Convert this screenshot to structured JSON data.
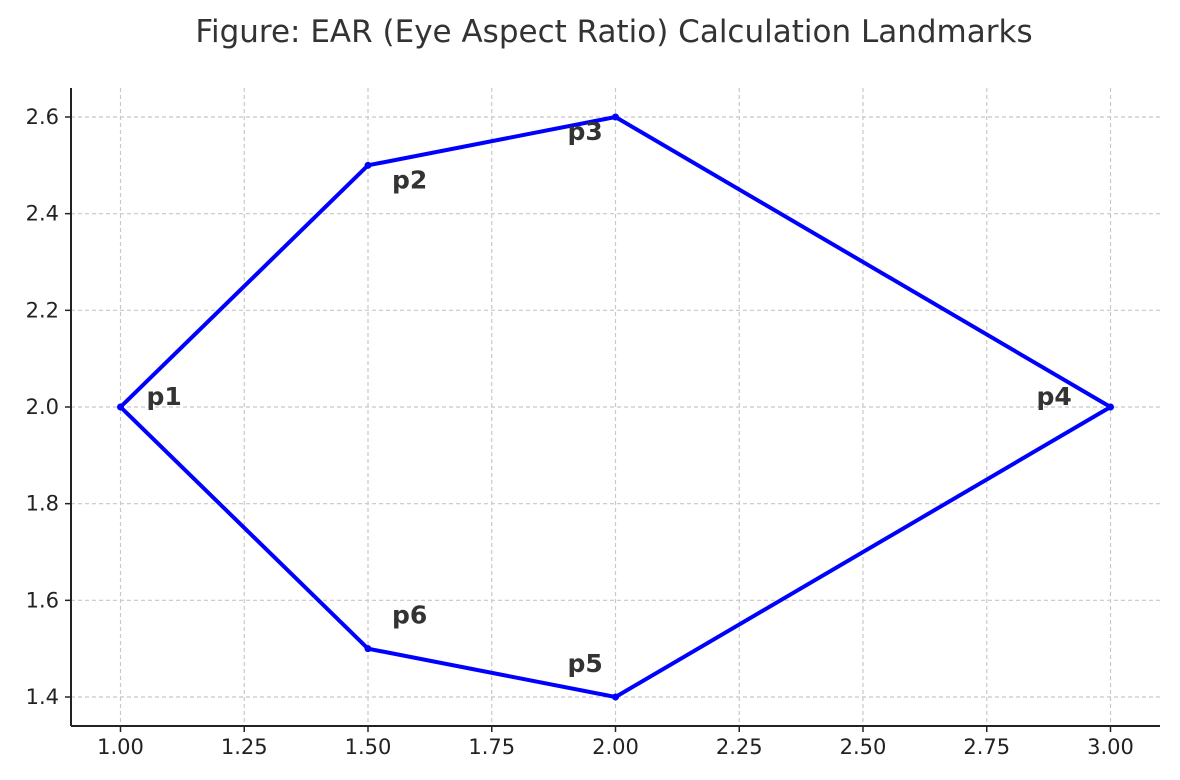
{
  "chart_data": {
    "type": "line",
    "title": "Figure: EAR (Eye Aspect Ratio) Calculation Landmarks",
    "xlabel": "",
    "ylabel": "",
    "xlim": [
      0.9,
      3.1
    ],
    "ylim": [
      1.34,
      2.66
    ],
    "x_ticks": [
      "1.00",
      "1.25",
      "1.50",
      "1.75",
      "2.00",
      "2.25",
      "2.50",
      "2.75",
      "3.00"
    ],
    "y_ticks": [
      "1.4",
      "1.6",
      "1.8",
      "2.0",
      "2.2",
      "2.4",
      "2.6"
    ],
    "grid": true,
    "closed": true,
    "series": [
      {
        "color": "#0000ff",
        "points": [
          {
            "x": 1.0,
            "y": 2.0,
            "label": "p1"
          },
          {
            "x": 1.5,
            "y": 2.5,
            "label": "p2"
          },
          {
            "x": 2.0,
            "y": 2.6,
            "label": "p3"
          },
          {
            "x": 3.0,
            "y": 2.0,
            "label": "p4"
          },
          {
            "x": 2.0,
            "y": 1.4,
            "label": "p5"
          },
          {
            "x": 1.5,
            "y": 1.5,
            "label": "p6"
          }
        ]
      }
    ]
  }
}
